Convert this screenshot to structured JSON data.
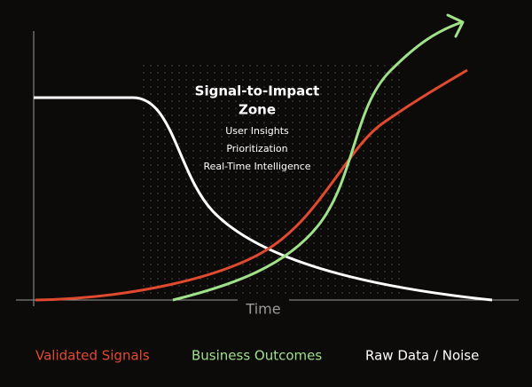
{
  "zone": {
    "title_lines": [
      "Signal-to-Impact",
      "Zone"
    ],
    "items": [
      "User Insights",
      "Prioritization",
      "Real-Time Intelligence"
    ]
  },
  "axis": {
    "x_label": "Time"
  },
  "legend": [
    "Validated Signals",
    "Business Outcomes",
    "Raw Data / Noise"
  ]
}
